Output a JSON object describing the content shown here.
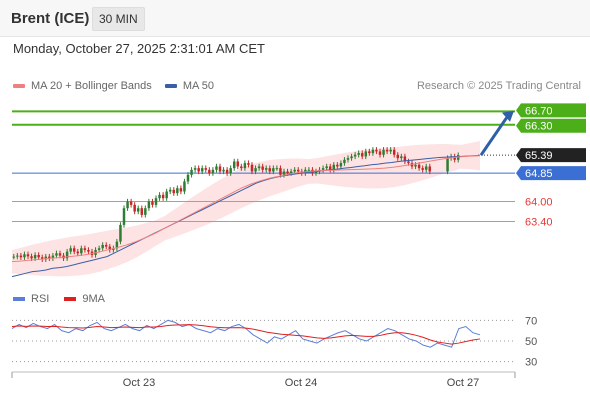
{
  "header": {
    "title": "Brent (ICE)",
    "interval": "30 MIN"
  },
  "timestamp": "Monday, October 27, 2025 2:31:01 AM CET",
  "legend": {
    "bollinger": "MA 20 + Bollinger Bands",
    "ma50": "MA 50"
  },
  "credit": "Research © 2025 Trading Central",
  "rsi_legend": {
    "rsi": "RSI",
    "ma": "9MA"
  },
  "colors": {
    "bollinger": "#f08080",
    "ma50": "#3a5fa8",
    "resistance": "#4caf1a",
    "pivot": "#3b6fd4",
    "support": "#f08080",
    "rsi": "#5b7fd8",
    "rsi_ma": "#e02020",
    "up": "#2e7d32",
    "down": "#c62828"
  },
  "chart_data": [
    {
      "type": "line",
      "title": "Brent (ICE)",
      "x_ticks": [
        "Oct 23",
        "Oct 24",
        "Oct 27"
      ],
      "levels": [
        {
          "value": "66.70",
          "kind": "resistance"
        },
        {
          "value": "66.30",
          "kind": "resistance"
        },
        {
          "value": "65.39",
          "kind": "last"
        },
        {
          "value": "64.85",
          "kind": "pivot"
        },
        {
          "value": "64.00",
          "kind": "support"
        },
        {
          "value": "63.40",
          "kind": "support"
        }
      ],
      "ylim": [
        61.5,
        67.1
      ],
      "series": [
        {
          "name": "Price",
          "values": [
            62.35,
            62.38,
            62.33,
            62.42,
            62.36,
            62.3,
            62.4,
            62.33,
            62.27,
            62.35,
            62.3,
            62.38,
            62.45,
            62.38,
            62.3,
            62.5,
            62.6,
            62.5,
            62.45,
            62.6,
            62.55,
            62.5,
            62.4,
            62.55,
            62.6,
            62.7,
            62.65,
            62.55,
            62.6,
            62.8,
            63.3,
            63.8,
            64.0,
            63.9,
            63.7,
            63.8,
            63.6,
            63.8,
            64.0,
            63.9,
            64.1,
            64.2,
            64.1,
            64.3,
            64.35,
            64.25,
            64.4,
            64.3,
            64.6,
            64.8,
            64.95,
            65.0,
            64.9,
            65.0,
            64.95,
            64.85,
            64.95,
            65.05,
            64.9,
            64.95,
            64.85,
            65.0,
            65.2,
            65.05,
            65.0,
            65.15,
            65.1,
            64.9,
            65.0,
            65.05,
            64.95,
            65.0,
            64.9,
            65.0,
            65.0,
            64.8,
            64.9,
            64.85,
            64.9,
            64.95,
            64.9,
            64.85,
            64.95,
            64.95,
            64.85,
            64.9,
            64.95,
            65.0,
            65.05,
            64.95,
            65.1,
            65.05,
            65.15,
            65.25,
            65.3,
            65.35,
            65.4,
            65.45,
            65.35,
            65.5,
            65.45,
            65.55,
            65.5,
            65.4,
            65.55,
            65.5,
            65.55,
            65.4,
            65.3,
            65.35,
            65.2,
            65.15,
            65.05,
            65.1,
            65.0,
            64.95,
            65.05,
            64.9,
            null,
            null,
            null,
            null,
            65.3,
            65.35,
            65.25,
            65.39
          ]
        },
        {
          "name": "MA 50",
          "values": [
            61.75,
            61.8,
            61.85,
            61.9,
            61.92,
            61.95,
            62.0,
            62.02,
            62.05,
            62.1,
            62.15,
            62.2,
            62.25,
            62.3,
            62.35,
            62.45,
            62.55,
            62.65,
            62.75,
            62.85,
            62.95,
            63.05,
            63.15,
            63.25,
            63.35,
            63.45,
            63.55,
            63.65,
            63.75,
            63.85,
            63.95,
            64.05,
            64.15,
            64.25,
            64.35,
            64.45,
            64.55,
            64.62,
            64.68,
            64.73,
            64.77,
            64.8,
            64.83,
            64.86,
            64.88,
            64.9,
            64.93,
            64.95,
            64.97,
            65.0,
            65.02,
            65.05,
            65.07,
            65.1,
            65.12,
            65.15,
            65.17,
            65.2,
            65.22,
            65.24,
            65.26,
            65.28,
            65.3,
            65.32,
            65.33,
            65.34,
            65.35,
            65.36,
            65.37,
            65.38
          ]
        },
        {
          "name": "MA 20",
          "values": [
            62.2,
            62.22,
            62.25,
            62.27,
            62.3,
            62.32,
            62.35,
            62.38,
            62.42,
            62.48,
            62.55,
            62.62,
            62.7,
            62.8,
            62.92,
            63.05,
            63.2,
            63.35,
            63.5,
            63.65,
            63.8,
            63.95,
            64.1,
            64.25,
            64.4,
            64.52,
            64.62,
            64.7,
            64.76,
            64.82,
            64.87,
            64.9,
            64.92,
            64.93,
            64.94,
            64.95,
            64.96,
            64.97,
            64.98,
            65.0,
            65.03,
            65.07,
            65.12,
            65.17,
            65.22,
            65.27,
            65.31,
            65.34,
            65.36,
            65.37
          ]
        }
      ]
    },
    {
      "type": "line",
      "title": "RSI",
      "ylim": [
        20,
        80
      ],
      "y_ticks": [
        "70",
        "50",
        "30"
      ],
      "series": [
        {
          "name": "RSI",
          "values": [
            62,
            66,
            63,
            67,
            64,
            62,
            66,
            60,
            58,
            62,
            60,
            65,
            68,
            62,
            60,
            63,
            66,
            62,
            60,
            65,
            62,
            66,
            70,
            68,
            64,
            66,
            62,
            60,
            58,
            62,
            60,
            64,
            66,
            62,
            56,
            52,
            48,
            54,
            52,
            56,
            60,
            52,
            50,
            48,
            52,
            55,
            58,
            60,
            56,
            52,
            50,
            54,
            58,
            62,
            60,
            56,
            52,
            50,
            46,
            44,
            48,
            46,
            44,
            62,
            64,
            58,
            56
          ]
        },
        {
          "name": "9MA",
          "values": [
            64,
            64.5,
            64.2,
            64.5,
            64.4,
            64.0,
            64.2,
            63.5,
            63,
            62.8,
            62.6,
            63.2,
            64,
            63.5,
            63,
            63.2,
            63.5,
            63.2,
            63,
            63.5,
            63.5,
            64,
            65,
            65.5,
            65.6,
            65.8,
            65.5,
            64.8,
            63.8,
            63.2,
            62.8,
            62.8,
            63,
            62.5,
            61.5,
            60,
            58.5,
            57.5,
            56.5,
            56,
            55.5,
            55,
            54,
            53,
            52.5,
            53,
            54,
            55,
            55.5,
            55,
            54.5,
            54.5,
            55.5,
            57,
            58,
            58,
            57,
            55.5,
            53.5,
            51,
            49,
            48,
            47,
            48,
            49.5,
            51,
            52
          ]
        }
      ]
    }
  ]
}
